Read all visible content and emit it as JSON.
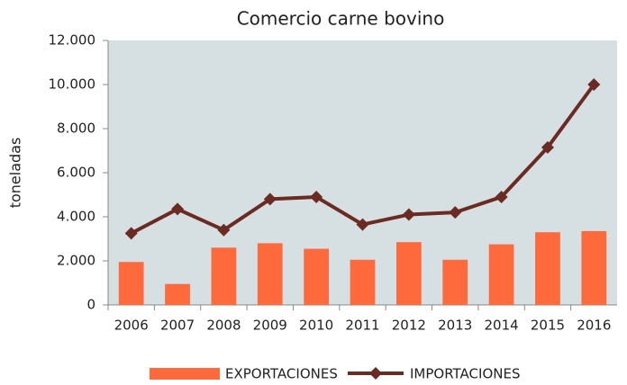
{
  "chart_data": {
    "type": "bar_line",
    "title": "Comercio carne bovino",
    "y_label": "toneladas",
    "categories": [
      "2006",
      "2007",
      "2008",
      "2009",
      "2010",
      "2011",
      "2012",
      "2013",
      "2014",
      "2015",
      "2016"
    ],
    "series": [
      {
        "name": "EXPORTACIONES",
        "type": "bar",
        "color": "#ff6a3d",
        "values": [
          1950,
          950,
          2600,
          2800,
          2550,
          2050,
          2850,
          2050,
          2750,
          3300,
          3350
        ]
      },
      {
        "name": "IMPORTACIONES",
        "type": "line",
        "color": "#6b2b23",
        "values": [
          3250,
          4350,
          3400,
          4800,
          4900,
          3650,
          4100,
          4200,
          4900,
          7150,
          10000
        ]
      }
    ],
    "ylim": [
      0,
      12000
    ],
    "yticks": [
      0,
      {
        "value": 2000,
        "label": "2.000"
      },
      {
        "value": 4000,
        "label": "4.000"
      },
      {
        "value": 6000,
        "label": "6.000"
      },
      {
        "value": 8000,
        "label": "8.000"
      },
      {
        "value": 10000,
        "label": "10.000"
      },
      {
        "value": 12000,
        "label": "12.000"
      }
    ],
    "legend": "bottom",
    "plot_background": "#d6dfe1"
  }
}
